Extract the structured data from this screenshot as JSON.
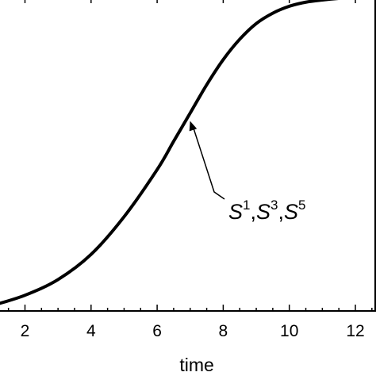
{
  "chart_data": {
    "type": "line",
    "xlabel": "time",
    "ylabel": "",
    "title": "",
    "xlim": [
      1.1,
      12.6
    ],
    "ylim": [
      0,
      1
    ],
    "x_ticks": [
      2,
      4,
      6,
      8,
      10,
      12
    ],
    "x_tick_labels": [
      "2",
      "4",
      "6",
      "8",
      "10",
      "12"
    ],
    "grid": false,
    "series": [
      {
        "color": "#000000",
        "x": [
          1.1,
          2,
          3,
          4,
          5,
          6,
          6.5,
          7,
          7.5,
          8,
          8.5,
          9,
          9.5,
          10,
          10.5,
          11,
          11.5,
          12,
          12.6
        ],
        "y": [
          0.02,
          0.05,
          0.1,
          0.18,
          0.3,
          0.45,
          0.54,
          0.63,
          0.72,
          0.8,
          0.865,
          0.915,
          0.948,
          0.97,
          0.983,
          0.99,
          0.995,
          0.998,
          1.0
        ]
      }
    ],
    "annotation": {
      "base": "S",
      "superscripts": [
        "1",
        "3",
        "5"
      ],
      "arrow_target": {
        "x": 6.9,
        "y": 0.615
      }
    }
  }
}
